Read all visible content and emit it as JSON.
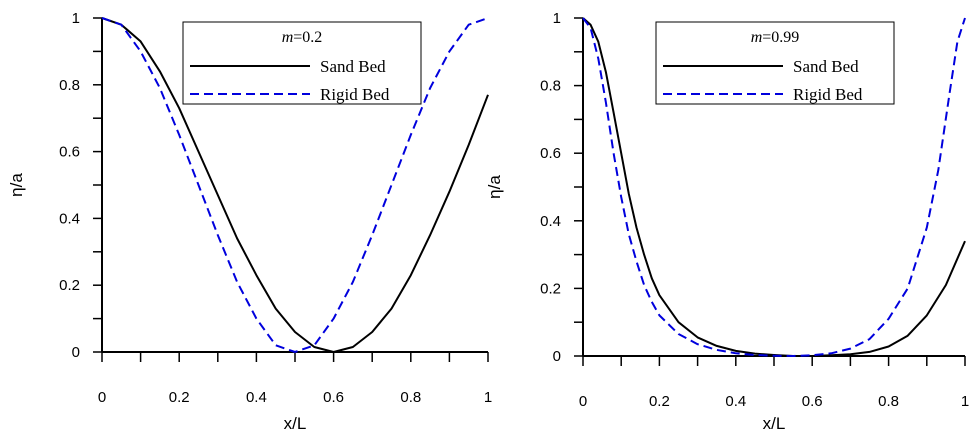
{
  "chart_data": [
    {
      "type": "line",
      "title": "",
      "xlabel": "x/L",
      "ylabel": "η/a",
      "xlim": [
        0,
        1
      ],
      "ylim": [
        0,
        1
      ],
      "xticks": [
        "0",
        "0.2",
        "0.4",
        "0.6",
        "0.8",
        "1"
      ],
      "yticks": [
        "0",
        "0.2",
        "0.4",
        "0.6",
        "0.8",
        "1"
      ],
      "legend": {
        "title_italic": "m",
        "title_rest": "=0.2",
        "placement": "top-right"
      },
      "series": [
        {
          "name": "Sand Bed",
          "color": "#000000",
          "dash": "solid",
          "x": [
            0,
            0.05,
            0.1,
            0.15,
            0.2,
            0.25,
            0.3,
            0.35,
            0.4,
            0.45,
            0.5,
            0.55,
            0.6,
            0.65,
            0.7,
            0.75,
            0.8,
            0.85,
            0.9,
            0.95,
            1.0
          ],
          "y": [
            1.0,
            0.98,
            0.93,
            0.84,
            0.73,
            0.6,
            0.47,
            0.34,
            0.23,
            0.13,
            0.06,
            0.015,
            0.0,
            0.015,
            0.06,
            0.13,
            0.23,
            0.35,
            0.48,
            0.62,
            0.77
          ]
        },
        {
          "name": "Rigid Bed",
          "color": "#0000dd",
          "dash": "dashed",
          "x": [
            0,
            0.05,
            0.1,
            0.15,
            0.2,
            0.25,
            0.3,
            0.35,
            0.4,
            0.45,
            0.5,
            0.55,
            0.6,
            0.65,
            0.7,
            0.75,
            0.8,
            0.85,
            0.9,
            0.95,
            1.0
          ],
          "y": [
            1.0,
            0.98,
            0.9,
            0.79,
            0.65,
            0.5,
            0.35,
            0.21,
            0.1,
            0.02,
            0.0,
            0.02,
            0.1,
            0.21,
            0.35,
            0.5,
            0.65,
            0.79,
            0.9,
            0.98,
            1.0
          ]
        }
      ]
    },
    {
      "type": "line",
      "title": "",
      "xlabel": "x/L",
      "ylabel": "η/a",
      "xlim": [
        0,
        1
      ],
      "ylim": [
        0,
        1
      ],
      "xticks": [
        "0",
        "0.2",
        "0.4",
        "0.6",
        "0.8",
        "1"
      ],
      "yticks": [
        "0",
        "0.2",
        "0.4",
        "0.6",
        "0.8",
        "1"
      ],
      "legend": {
        "title_italic": "m",
        "title_rest": "=0.99",
        "placement": "top-right"
      },
      "series": [
        {
          "name": "Sand Bed",
          "color": "#000000",
          "dash": "solid",
          "x": [
            0,
            0.02,
            0.04,
            0.06,
            0.08,
            0.1,
            0.12,
            0.14,
            0.16,
            0.18,
            0.2,
            0.25,
            0.3,
            0.35,
            0.4,
            0.45,
            0.5,
            0.55,
            0.6,
            0.65,
            0.7,
            0.75,
            0.8,
            0.85,
            0.9,
            0.95,
            1.0
          ],
          "y": [
            1.0,
            0.98,
            0.93,
            0.84,
            0.72,
            0.6,
            0.48,
            0.38,
            0.3,
            0.23,
            0.18,
            0.1,
            0.055,
            0.03,
            0.015,
            0.007,
            0.003,
            0.0,
            0.0,
            0.002,
            0.005,
            0.012,
            0.028,
            0.06,
            0.12,
            0.21,
            0.34
          ]
        },
        {
          "name": "Rigid Bed",
          "color": "#0000dd",
          "dash": "dashed",
          "x": [
            0,
            0.02,
            0.04,
            0.06,
            0.08,
            0.1,
            0.12,
            0.14,
            0.16,
            0.18,
            0.2,
            0.25,
            0.3,
            0.35,
            0.4,
            0.45,
            0.5,
            0.55,
            0.6,
            0.65,
            0.7,
            0.75,
            0.8,
            0.85,
            0.9,
            0.93,
            0.96,
            0.98,
            1.0
          ],
          "y": [
            1.0,
            0.97,
            0.88,
            0.75,
            0.6,
            0.47,
            0.36,
            0.28,
            0.21,
            0.16,
            0.12,
            0.065,
            0.035,
            0.018,
            0.008,
            0.003,
            0.001,
            0.0,
            0.002,
            0.008,
            0.022,
            0.05,
            0.11,
            0.2,
            0.38,
            0.55,
            0.78,
            0.93,
            1.0
          ]
        }
      ]
    }
  ]
}
